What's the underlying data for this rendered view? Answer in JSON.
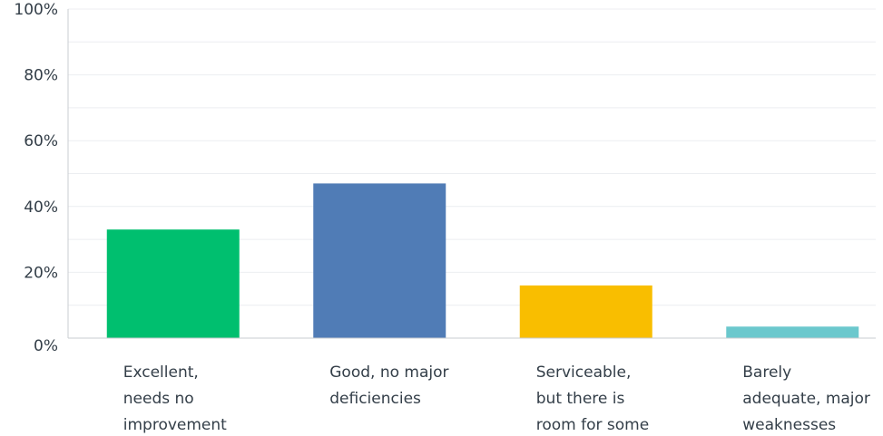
{
  "chart_data": {
    "type": "bar",
    "categories": [
      [
        "Excellent,",
        "needs no",
        "improvement"
      ],
      [
        "Good, no major",
        "deficiencies"
      ],
      [
        "Serviceable,",
        "but there is",
        "room for some"
      ],
      [
        "Barely",
        "adequate, major",
        "weaknesses"
      ]
    ],
    "values": [
      33,
      47,
      16,
      3.5
    ],
    "colors": [
      "#00bf6f",
      "#507cb6",
      "#f9be00",
      "#6bc8cd"
    ],
    "ylim": [
      0,
      100
    ],
    "yticks": [
      0,
      20,
      40,
      60,
      80,
      100
    ],
    "ytick_labels": [
      "0%",
      "20%",
      "40%",
      "60%",
      "80%",
      "100%"
    ],
    "grid": true,
    "title": "",
    "xlabel": "",
    "ylabel": ""
  }
}
